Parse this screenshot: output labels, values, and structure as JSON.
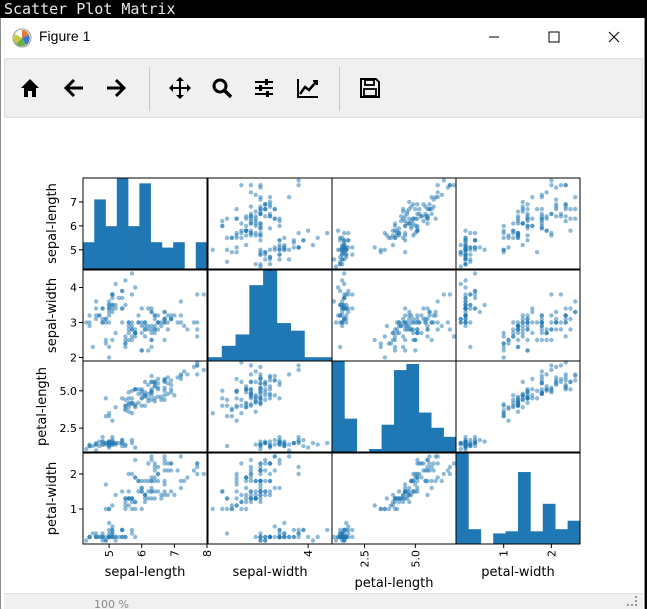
{
  "app_title": "Scatter Plot Matrix",
  "window": {
    "title": "Figure 1"
  },
  "icons": {
    "app": "matplotlib-icon",
    "minimize": "minimize-icon",
    "maximize": "maximize-icon",
    "close": "close-icon"
  },
  "toolbar": [
    {
      "name": "home-icon"
    },
    {
      "name": "arrow-left-icon"
    },
    {
      "name": "arrow-right-icon"
    },
    {
      "name": "move-icon"
    },
    {
      "name": "zoom-icon"
    },
    {
      "name": "configure-subplots-icon"
    },
    {
      "name": "edit-axis-icon"
    },
    {
      "name": "save-icon"
    }
  ],
  "status": {
    "text": "100 %"
  },
  "colors": {
    "point": "#1f77b4",
    "bar": "#1f77b4"
  },
  "chart_data": {
    "type": "scatter",
    "variables": [
      "sepal-length",
      "sepal-width",
      "petal-length",
      "petal-width"
    ],
    "ranges": [
      [
        4.2,
        8.0
      ],
      [
        1.9,
        4.5
      ],
      [
        0.9,
        7.0
      ],
      [
        0.0,
        2.6
      ]
    ],
    "ytick_labels": [
      [
        "5",
        "6",
        "7"
      ],
      [
        "2",
        "3",
        "4"
      ],
      [
        "2.5",
        "5.0"
      ],
      [
        "1",
        "2"
      ]
    ],
    "xtick_labels": [
      [
        "5",
        "6",
        "7",
        "8"
      ],
      [
        "4"
      ],
      [
        "2.5",
        "5.0"
      ],
      [
        "1",
        "2"
      ]
    ],
    "histograms": [
      [
        5,
        13,
        8,
        17,
        8,
        16,
        5,
        4,
        5,
        0,
        5
      ],
      [
        1,
        4,
        7,
        20,
        24,
        10,
        8,
        1,
        1
      ],
      [
        30,
        11,
        0,
        1,
        9,
        27,
        29,
        13,
        8,
        5
      ],
      [
        43,
        7,
        0,
        5,
        6,
        34,
        6,
        19,
        7,
        11
      ]
    ],
    "samples": [
      [
        5.1,
        3.5,
        1.4,
        0.2
      ],
      [
        4.9,
        3.0,
        1.4,
        0.2
      ],
      [
        4.7,
        3.2,
        1.3,
        0.2
      ],
      [
        4.6,
        3.1,
        1.5,
        0.2
      ],
      [
        5.0,
        3.6,
        1.4,
        0.2
      ],
      [
        5.4,
        3.9,
        1.7,
        0.4
      ],
      [
        4.6,
        3.4,
        1.4,
        0.3
      ],
      [
        5.0,
        3.4,
        1.5,
        0.2
      ],
      [
        4.4,
        2.9,
        1.4,
        0.2
      ],
      [
        4.9,
        3.1,
        1.5,
        0.1
      ],
      [
        5.4,
        3.7,
        1.5,
        0.2
      ],
      [
        4.8,
        3.4,
        1.6,
        0.2
      ],
      [
        4.8,
        3.0,
        1.4,
        0.1
      ],
      [
        4.3,
        3.0,
        1.1,
        0.1
      ],
      [
        5.8,
        4.0,
        1.2,
        0.2
      ],
      [
        5.7,
        4.4,
        1.5,
        0.4
      ],
      [
        5.4,
        3.9,
        1.3,
        0.4
      ],
      [
        5.1,
        3.5,
        1.4,
        0.3
      ],
      [
        5.7,
        3.8,
        1.7,
        0.3
      ],
      [
        5.1,
        3.8,
        1.5,
        0.3
      ],
      [
        5.4,
        3.4,
        1.7,
        0.2
      ],
      [
        5.1,
        3.7,
        1.5,
        0.4
      ],
      [
        4.6,
        3.6,
        1.0,
        0.2
      ],
      [
        5.1,
        3.3,
        1.7,
        0.5
      ],
      [
        4.8,
        3.4,
        1.9,
        0.2
      ],
      [
        5.0,
        3.0,
        1.6,
        0.2
      ],
      [
        5.0,
        3.4,
        1.6,
        0.4
      ],
      [
        5.2,
        3.5,
        1.5,
        0.2
      ],
      [
        5.2,
        3.4,
        1.4,
        0.2
      ],
      [
        4.7,
        3.2,
        1.6,
        0.2
      ],
      [
        4.8,
        3.1,
        1.6,
        0.2
      ],
      [
        5.4,
        3.4,
        1.5,
        0.4
      ],
      [
        5.2,
        4.1,
        1.5,
        0.1
      ],
      [
        5.5,
        4.2,
        1.4,
        0.2
      ],
      [
        4.9,
        3.1,
        1.5,
        0.1
      ],
      [
        5.0,
        3.2,
        1.2,
        0.2
      ],
      [
        5.5,
        3.5,
        1.3,
        0.2
      ],
      [
        4.4,
        3.0,
        1.3,
        0.2
      ],
      [
        5.1,
        3.4,
        1.5,
        0.2
      ],
      [
        5.0,
        3.5,
        1.3,
        0.3
      ],
      [
        4.5,
        2.3,
        1.3,
        0.3
      ],
      [
        4.4,
        3.2,
        1.3,
        0.2
      ],
      [
        5.0,
        3.5,
        1.6,
        0.6
      ],
      [
        5.1,
        3.8,
        1.9,
        0.4
      ],
      [
        4.8,
        3.0,
        1.4,
        0.3
      ],
      [
        5.1,
        3.8,
        1.6,
        0.2
      ],
      [
        4.6,
        3.2,
        1.4,
        0.2
      ],
      [
        5.3,
        3.7,
        1.5,
        0.2
      ],
      [
        5.0,
        3.3,
        1.4,
        0.2
      ],
      [
        7.0,
        3.2,
        4.7,
        1.4
      ],
      [
        6.4,
        3.2,
        4.5,
        1.5
      ],
      [
        6.9,
        3.1,
        4.9,
        1.5
      ],
      [
        5.5,
        2.3,
        4.0,
        1.3
      ],
      [
        6.5,
        2.8,
        4.6,
        1.5
      ],
      [
        5.7,
        2.8,
        4.5,
        1.3
      ],
      [
        6.3,
        3.3,
        4.7,
        1.6
      ],
      [
        4.9,
        2.4,
        3.3,
        1.0
      ],
      [
        6.6,
        2.9,
        4.6,
        1.3
      ],
      [
        5.2,
        2.7,
        3.9,
        1.4
      ],
      [
        5.0,
        2.0,
        3.5,
        1.0
      ],
      [
        5.9,
        3.0,
        4.2,
        1.5
      ],
      [
        6.0,
        2.2,
        4.0,
        1.0
      ],
      [
        6.1,
        2.9,
        4.7,
        1.4
      ],
      [
        5.6,
        2.9,
        3.6,
        1.3
      ],
      [
        6.7,
        3.1,
        4.4,
        1.4
      ],
      [
        5.6,
        3.0,
        4.5,
        1.5
      ],
      [
        5.8,
        2.7,
        4.1,
        1.0
      ],
      [
        6.2,
        2.2,
        4.5,
        1.5
      ],
      [
        5.6,
        2.5,
        3.9,
        1.1
      ],
      [
        5.9,
        3.2,
        4.8,
        1.8
      ],
      [
        6.1,
        2.8,
        4.0,
        1.3
      ],
      [
        6.3,
        2.5,
        4.9,
        1.5
      ],
      [
        6.1,
        2.8,
        4.7,
        1.2
      ],
      [
        6.4,
        2.9,
        4.3,
        1.3
      ],
      [
        6.6,
        3.0,
        4.4,
        1.4
      ],
      [
        6.8,
        2.8,
        4.8,
        1.4
      ],
      [
        6.7,
        3.0,
        5.0,
        1.7
      ],
      [
        6.0,
        2.9,
        4.5,
        1.5
      ],
      [
        5.7,
        2.6,
        3.5,
        1.0
      ],
      [
        5.5,
        2.4,
        3.8,
        1.1
      ],
      [
        5.5,
        2.4,
        3.7,
        1.0
      ],
      [
        5.8,
        2.7,
        3.9,
        1.2
      ],
      [
        6.0,
        2.7,
        5.1,
        1.6
      ],
      [
        5.4,
        3.0,
        4.5,
        1.5
      ],
      [
        6.0,
        3.4,
        4.5,
        1.6
      ],
      [
        6.7,
        3.1,
        4.7,
        1.5
      ],
      [
        6.3,
        2.3,
        4.4,
        1.3
      ],
      [
        5.6,
        3.0,
        4.1,
        1.3
      ],
      [
        5.5,
        2.5,
        4.0,
        1.3
      ],
      [
        5.5,
        2.6,
        4.4,
        1.2
      ],
      [
        6.1,
        3.0,
        4.6,
        1.4
      ],
      [
        5.8,
        2.6,
        4.0,
        1.2
      ],
      [
        5.0,
        2.3,
        3.3,
        1.0
      ],
      [
        5.6,
        2.7,
        4.2,
        1.3
      ],
      [
        5.7,
        3.0,
        4.2,
        1.2
      ],
      [
        5.7,
        2.9,
        4.2,
        1.3
      ],
      [
        6.2,
        2.9,
        4.3,
        1.3
      ],
      [
        5.1,
        2.5,
        3.0,
        1.1
      ],
      [
        5.7,
        2.8,
        4.1,
        1.3
      ],
      [
        6.3,
        3.3,
        6.0,
        2.5
      ],
      [
        5.8,
        2.7,
        5.1,
        1.9
      ],
      [
        7.1,
        3.0,
        5.9,
        2.1
      ],
      [
        6.3,
        2.9,
        5.6,
        1.8
      ],
      [
        6.5,
        3.0,
        5.8,
        2.2
      ],
      [
        7.6,
        3.0,
        6.6,
        2.1
      ],
      [
        4.9,
        2.5,
        4.5,
        1.7
      ],
      [
        7.3,
        2.9,
        6.3,
        1.8
      ],
      [
        6.7,
        2.5,
        5.8,
        1.8
      ],
      [
        7.2,
        3.6,
        6.1,
        2.5
      ],
      [
        6.5,
        3.2,
        5.1,
        2.0
      ],
      [
        6.4,
        2.7,
        5.3,
        1.9
      ],
      [
        6.8,
        3.0,
        5.5,
        2.1
      ],
      [
        5.7,
        2.5,
        5.0,
        2.0
      ],
      [
        5.8,
        2.8,
        5.1,
        2.4
      ],
      [
        6.4,
        3.2,
        5.3,
        2.3
      ],
      [
        6.5,
        3.0,
        5.5,
        1.8
      ],
      [
        7.7,
        3.8,
        6.7,
        2.2
      ],
      [
        7.7,
        2.6,
        6.9,
        2.3
      ],
      [
        6.0,
        2.2,
        5.0,
        1.5
      ],
      [
        6.9,
        3.2,
        5.7,
        2.3
      ],
      [
        5.6,
        2.8,
        4.9,
        2.0
      ],
      [
        7.7,
        2.8,
        6.7,
        2.0
      ],
      [
        6.3,
        2.7,
        4.9,
        1.8
      ],
      [
        6.7,
        3.3,
        5.7,
        2.1
      ],
      [
        7.2,
        3.2,
        6.0,
        1.8
      ],
      [
        6.2,
        2.8,
        4.8,
        1.8
      ],
      [
        6.1,
        3.0,
        4.9,
        1.8
      ],
      [
        6.4,
        2.8,
        5.6,
        2.1
      ],
      [
        7.2,
        3.0,
        5.8,
        1.6
      ],
      [
        7.4,
        2.8,
        6.1,
        1.9
      ],
      [
        7.9,
        3.8,
        6.4,
        2.0
      ],
      [
        6.4,
        2.8,
        5.6,
        2.2
      ],
      [
        6.3,
        2.8,
        5.1,
        1.5
      ],
      [
        6.1,
        2.6,
        5.6,
        1.4
      ],
      [
        7.7,
        3.0,
        6.1,
        2.3
      ],
      [
        6.3,
        3.4,
        5.6,
        2.4
      ],
      [
        6.4,
        3.1,
        5.5,
        1.8
      ],
      [
        6.0,
        3.0,
        4.8,
        1.8
      ],
      [
        6.9,
        3.1,
        5.4,
        2.1
      ],
      [
        6.7,
        3.1,
        5.6,
        2.4
      ],
      [
        6.9,
        3.1,
        5.1,
        2.3
      ],
      [
        5.8,
        2.7,
        5.1,
        1.9
      ],
      [
        6.8,
        3.2,
        5.9,
        2.3
      ],
      [
        6.7,
        3.3,
        5.7,
        2.5
      ],
      [
        6.7,
        3.0,
        5.2,
        2.3
      ],
      [
        6.3,
        2.5,
        5.0,
        1.9
      ],
      [
        6.5,
        3.0,
        5.2,
        2.0
      ],
      [
        6.2,
        3.4,
        5.4,
        2.3
      ],
      [
        5.9,
        3.0,
        5.1,
        1.8
      ]
    ]
  }
}
